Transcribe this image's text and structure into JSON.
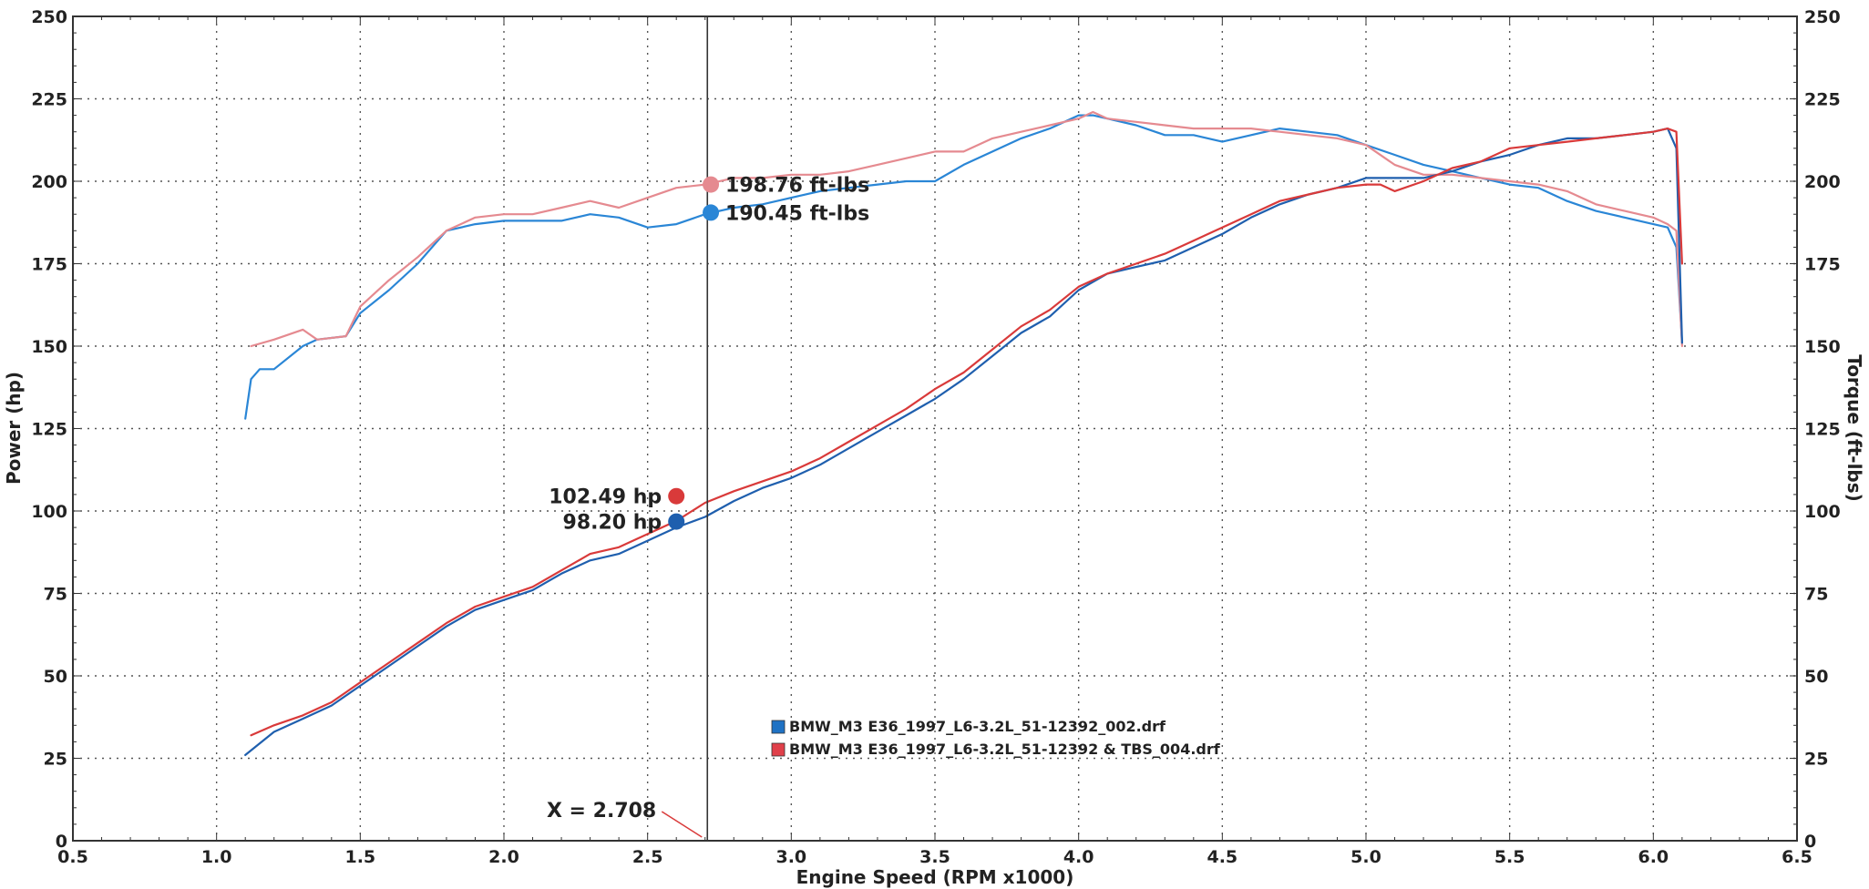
{
  "chart_data": {
    "type": "line",
    "xlabel": "Engine Speed (RPM x1000)",
    "ylabel": "Power (hp)",
    "y2label": "Torque (ft-lbs)",
    "xlim": [
      0.5,
      6.5
    ],
    "ylim": [
      0,
      250
    ],
    "y2lim": [
      0,
      250
    ],
    "x_ticks": [
      "0.5",
      "1.0",
      "1.5",
      "2.0",
      "2.5",
      "3.0",
      "3.5",
      "4.0",
      "4.5",
      "5.0",
      "5.5",
      "6.0",
      "6.5"
    ],
    "y_ticks": [
      "0",
      "25",
      "50",
      "75",
      "100",
      "125",
      "150",
      "175",
      "200",
      "225",
      "250"
    ],
    "y2_ticks": [
      "0",
      "25",
      "50",
      "75",
      "100",
      "125",
      "150",
      "175",
      "200",
      "225",
      "250"
    ],
    "grid": true,
    "cursor": {
      "x": 2.708,
      "label": "X = 2.708"
    },
    "legend": {
      "placement": "bottom-center",
      "entries": [
        {
          "label": "BMW_M3 E36_1997_L6-3.2L_51-12392_002.drf",
          "color": "#1f72c4"
        },
        {
          "label": "BMW_M3 E36_1997_L6-3.2L_51-12392 & TBS_004.drf",
          "color": "#e0404a"
        }
      ]
    },
    "callouts": [
      {
        "text": "198.76 ft-lbs",
        "x": 2.72,
        "y": 199.0,
        "color": "#e58a90",
        "side": "right"
      },
      {
        "text": "190.45 ft-lbs",
        "x": 2.72,
        "y": 190.5,
        "color": "#2a86d6",
        "side": "right"
      },
      {
        "text": "102.49 hp",
        "x": 2.6,
        "y": 104.5,
        "color": "#d93a3a",
        "side": "left"
      },
      {
        "text": "98.20 hp",
        "x": 2.6,
        "y": 96.8,
        "color": "#1f5fae",
        "side": "left"
      }
    ],
    "series": [
      {
        "name": "BMW_M3 E36_1997_L6-3.2L_51-12392_002.drf",
        "quantity": "Torque (ft-lbs)",
        "color": "#2a86d6",
        "x": [
          1.1,
          1.12,
          1.15,
          1.2,
          1.3,
          1.35,
          1.45,
          1.5,
          1.6,
          1.7,
          1.8,
          1.9,
          2.0,
          2.2,
          2.3,
          2.4,
          2.5,
          2.6,
          2.7,
          2.8,
          2.9,
          3.0,
          3.1,
          3.2,
          3.3,
          3.4,
          3.5,
          3.6,
          3.7,
          3.8,
          3.9,
          4.0,
          4.05,
          4.1,
          4.2,
          4.3,
          4.4,
          4.5,
          4.6,
          4.7,
          4.8,
          4.9,
          5.0,
          5.1,
          5.2,
          5.3,
          5.4,
          5.5,
          5.6,
          5.7,
          5.8,
          5.9,
          6.0,
          6.05,
          6.08,
          6.1
        ],
        "y": [
          128,
          140,
          143,
          143,
          150,
          152,
          153,
          160,
          167,
          175,
          185,
          187,
          188,
          188,
          190,
          189,
          186,
          187,
          190,
          192,
          193,
          195,
          197,
          198,
          199,
          200,
          200,
          205,
          209,
          213,
          216,
          220,
          220,
          219,
          217,
          214,
          214,
          212,
          214,
          216,
          215,
          214,
          211,
          208,
          205,
          203,
          201,
          199,
          198,
          194,
          191,
          189,
          187,
          186,
          180,
          151
        ]
      },
      {
        "name": "BMW_M3 E36_1997_L6-3.2L_51-12392 & TBS_004.drf",
        "quantity": "Torque (ft-lbs)",
        "color": "#e58a90",
        "x": [
          1.12,
          1.2,
          1.3,
          1.35,
          1.45,
          1.5,
          1.6,
          1.7,
          1.8,
          1.9,
          2.0,
          2.1,
          2.2,
          2.3,
          2.4,
          2.5,
          2.6,
          2.7,
          2.8,
          2.9,
          3.0,
          3.1,
          3.2,
          3.3,
          3.4,
          3.5,
          3.6,
          3.7,
          3.8,
          3.9,
          4.0,
          4.05,
          4.1,
          4.2,
          4.3,
          4.4,
          4.5,
          4.6,
          4.7,
          4.8,
          4.9,
          5.0,
          5.1,
          5.2,
          5.3,
          5.4,
          5.5,
          5.6,
          5.7,
          5.8,
          5.9,
          6.0,
          6.05,
          6.08,
          6.1
        ],
        "y": [
          150,
          152,
          155,
          152,
          153,
          162,
          170,
          177,
          185,
          189,
          190,
          190,
          192,
          194,
          192,
          195,
          198,
          199,
          201,
          201,
          202,
          202,
          203,
          205,
          207,
          209,
          209,
          213,
          215,
          217,
          219,
          221,
          219,
          218,
          217,
          216,
          216,
          216,
          215,
          214,
          213,
          211,
          205,
          202,
          202,
          201,
          200,
          199,
          197,
          193,
          191,
          189,
          187,
          185,
          150
        ]
      },
      {
        "name": "BMW_M3 E36_1997_L6-3.2L_51-12392_002.drf",
        "quantity": "Power (hp)",
        "color": "#1f5fae",
        "x": [
          1.1,
          1.2,
          1.3,
          1.4,
          1.5,
          1.6,
          1.7,
          1.8,
          1.9,
          2.0,
          2.1,
          2.2,
          2.3,
          2.4,
          2.5,
          2.6,
          2.7,
          2.8,
          2.9,
          3.0,
          3.1,
          3.2,
          3.3,
          3.4,
          3.5,
          3.6,
          3.7,
          3.8,
          3.9,
          4.0,
          4.1,
          4.2,
          4.3,
          4.4,
          4.5,
          4.6,
          4.7,
          4.8,
          4.9,
          5.0,
          5.1,
          5.2,
          5.3,
          5.4,
          5.5,
          5.6,
          5.7,
          5.8,
          5.9,
          6.0,
          6.05,
          6.08,
          6.1
        ],
        "y": [
          26,
          33,
          37,
          41,
          47,
          53,
          59,
          65,
          70,
          73,
          76,
          81,
          85,
          87,
          91,
          95,
          98.2,
          103,
          107,
          110,
          114,
          119,
          124,
          129,
          134,
          140,
          147,
          154,
          159,
          167,
          172,
          174,
          176,
          180,
          184,
          189,
          193,
          196,
          198,
          201,
          201,
          201,
          203,
          206,
          208,
          211,
          213,
          213,
          214,
          215,
          216,
          210,
          151
        ]
      },
      {
        "name": "BMW_M3 E36_1997_L6-3.2L_51-12392 & TBS_004.drf",
        "quantity": "Power (hp)",
        "color": "#d93a3a",
        "x": [
          1.12,
          1.2,
          1.3,
          1.4,
          1.5,
          1.6,
          1.7,
          1.8,
          1.9,
          2.0,
          2.1,
          2.2,
          2.3,
          2.4,
          2.5,
          2.6,
          2.7,
          2.8,
          2.9,
          3.0,
          3.1,
          3.2,
          3.3,
          3.4,
          3.5,
          3.6,
          3.7,
          3.8,
          3.9,
          4.0,
          4.1,
          4.2,
          4.3,
          4.4,
          4.5,
          4.6,
          4.7,
          4.8,
          4.9,
          5.0,
          5.05,
          5.1,
          5.2,
          5.3,
          5.4,
          5.5,
          5.6,
          5.7,
          5.8,
          5.9,
          6.0,
          6.05,
          6.08,
          6.1
        ],
        "y": [
          32,
          35,
          38,
          42,
          48,
          54,
          60,
          66,
          71,
          74,
          77,
          82,
          87,
          89,
          93,
          97,
          102.5,
          106,
          109,
          112,
          116,
          121,
          126,
          131,
          137,
          142,
          149,
          156,
          161,
          168,
          172,
          175,
          178,
          182,
          186,
          190,
          194,
          196,
          198,
          199,
          199,
          197,
          200,
          204,
          206,
          210,
          211,
          212,
          213,
          214,
          215,
          216,
          215,
          175
        ]
      }
    ]
  }
}
